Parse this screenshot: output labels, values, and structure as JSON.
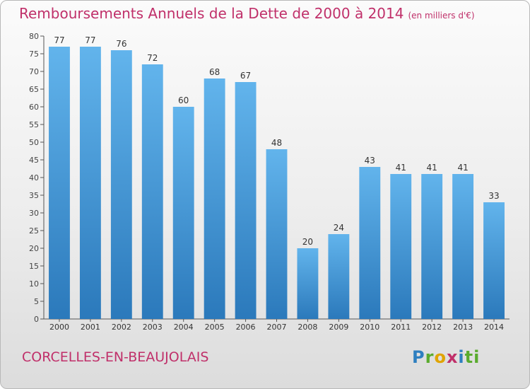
{
  "header": {
    "title": "Remboursements Annuels de la Dette de 2000 à 2014",
    "subtitle": "(en milliers d'€)"
  },
  "footer": {
    "commune": "CORCELLES-EN-BEAUJOLAIS",
    "brand_letters": [
      "P",
      "r",
      "o",
      "x",
      "i",
      "ti"
    ]
  },
  "colors": {
    "accent": "#c0306a",
    "bar_top": "#62b4ec",
    "bar_bottom": "#2b79bb"
  },
  "chart_data": {
    "type": "bar",
    "title": "Remboursements Annuels de la Dette de 2000 à 2014",
    "subtitle": "(en milliers d'€)",
    "categories": [
      "2000",
      "2001",
      "2002",
      "2003",
      "2004",
      "2005",
      "2006",
      "2007",
      "2008",
      "2009",
      "2010",
      "2011",
      "2012",
      "2013",
      "2014"
    ],
    "values": [
      77,
      77,
      76,
      72,
      60,
      68,
      67,
      48,
      20,
      24,
      43,
      41,
      41,
      41,
      33
    ],
    "ylim": [
      0,
      80
    ],
    "ytick_step": 5,
    "grid": false
  }
}
